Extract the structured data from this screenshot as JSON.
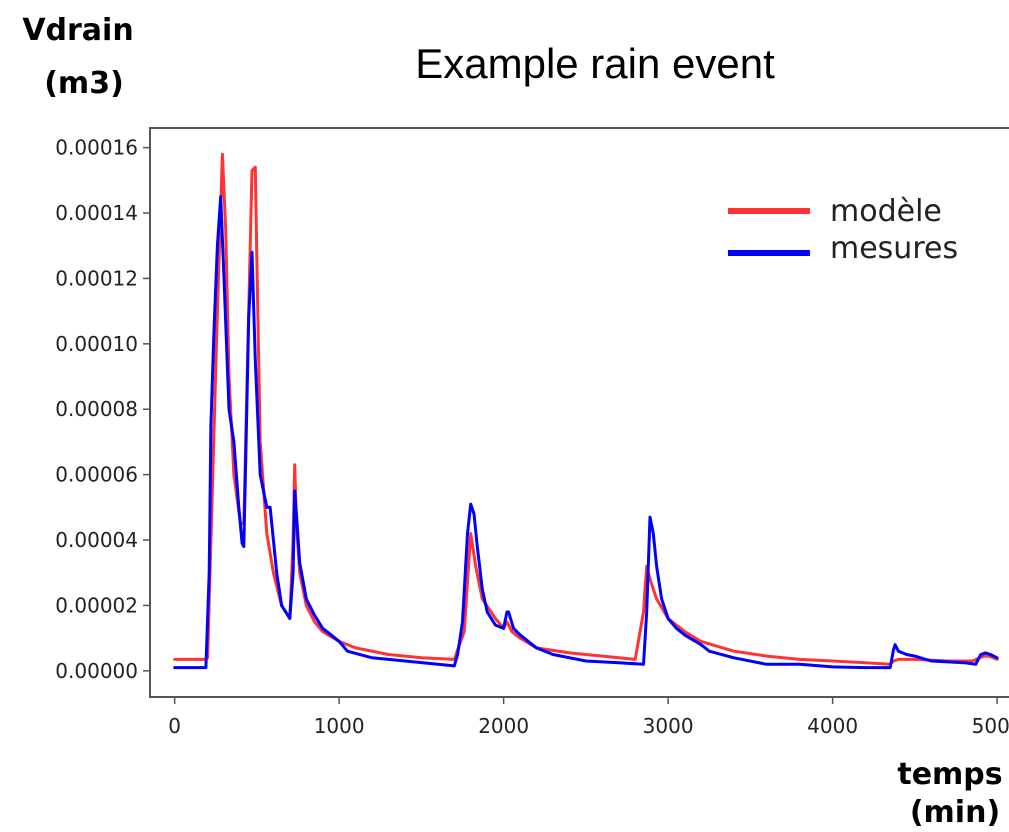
{
  "chart_data": {
    "type": "line",
    "title": "Example rain event",
    "ylabel_line1": "Vdrain",
    "ylabel_line2": "(m3)",
    "xlabel_line1": "temps",
    "xlabel_line2": "(min)",
    "xlim": [
      -150,
      5200
    ],
    "ylim": [
      -8e-06,
      0.000166
    ],
    "x_ticks": [
      0,
      1000,
      2000,
      3000,
      4000,
      5000
    ],
    "x_tick_labels": [
      "0",
      "1000",
      "2000",
      "3000",
      "4000",
      "5000"
    ],
    "y_ticks": [
      0,
      2e-05,
      4e-05,
      6e-05,
      8e-05,
      0.0001,
      0.00012,
      0.00014,
      0.00016
    ],
    "y_tick_labels": [
      "0.00000",
      "0.00002",
      "0.00004",
      "0.00006",
      "0.00008",
      "0.00010",
      "0.00012",
      "0.00014",
      "0.00016"
    ],
    "grid": false,
    "legend_position": "top-right",
    "series": [
      {
        "name": "modèle",
        "color": "#ff3333",
        "x": [
          0,
          190,
          200,
          260,
          290,
          310,
          330,
          360,
          400,
          420,
          450,
          470,
          490,
          500,
          520,
          560,
          600,
          650,
          700,
          720,
          730,
          740,
          760,
          800,
          850,
          900,
          1000,
          1100,
          1300,
          1500,
          1700,
          1760,
          1800,
          1830,
          1870,
          1950,
          2000,
          2020,
          2050,
          2100,
          2200,
          2400,
          2600,
          2800,
          2850,
          2870,
          2890,
          2930,
          3000,
          3100,
          3200,
          3400,
          3600,
          3800,
          4000,
          4200,
          4350,
          4370,
          4400,
          4500,
          4700,
          4850,
          4920,
          4950,
          5000
        ],
        "y": [
          3.5e-06,
          3.5e-06,
          4e-06,
          0.00011,
          0.000158,
          0.000135,
          9e-05,
          6e-05,
          4.5e-05,
          4.5e-05,
          0.00011,
          0.000153,
          0.000154,
          0.000125,
          7e-05,
          4.2e-05,
          3e-05,
          2e-05,
          1.6e-05,
          4e-05,
          6.3e-05,
          4.5e-05,
          3e-05,
          2e-05,
          1.5e-05,
          1.2e-05,
          9e-06,
          7e-06,
          5e-06,
          4e-06,
          3.5e-06,
          1.2e-05,
          4.2e-05,
          3.2e-05,
          2.2e-05,
          1.6e-05,
          1.3e-05,
          1.5e-05,
          1.2e-05,
          1e-05,
          7e-06,
          5.5e-06,
          4.5e-06,
          3.5e-06,
          1.8e-05,
          3.2e-05,
          2.8e-05,
          2.2e-05,
          1.6e-05,
          1.2e-05,
          9e-06,
          6e-06,
          4.5e-06,
          3.5e-06,
          3e-06,
          2.5e-06,
          2e-06,
          3e-06,
          3.5e-06,
          3.5e-06,
          3e-06,
          3e-06,
          4.5e-06,
          4.5e-06,
          3.5e-06
        ]
      },
      {
        "name": "mesures",
        "color": "#0000ff",
        "x": [
          0,
          190,
          210,
          220,
          240,
          260,
          280,
          300,
          330,
          360,
          390,
          410,
          420,
          430,
          450,
          470,
          490,
          520,
          560,
          580,
          600,
          620,
          650,
          700,
          720,
          730,
          740,
          760,
          800,
          850,
          900,
          1000,
          1050,
          1200,
          1400,
          1600,
          1700,
          1720,
          1750,
          1780,
          1800,
          1820,
          1840,
          1870,
          1900,
          1950,
          2000,
          2020,
          2030,
          2060,
          2100,
          2200,
          2300,
          2500,
          2700,
          2850,
          2870,
          2890,
          2910,
          2930,
          2960,
          3000,
          3050,
          3100,
          3200,
          3250,
          3400,
          3600,
          3800,
          4000,
          4200,
          4300,
          4350,
          4370,
          4380,
          4400,
          4450,
          4500,
          4600,
          4800,
          4870,
          4900,
          4930,
          4960,
          5000
        ],
        "y": [
          1e-06,
          1e-06,
          3e-05,
          7.5e-05,
          0.000105,
          0.00013,
          0.000145,
          0.00012,
          8e-05,
          7e-05,
          5e-05,
          3.9e-05,
          3.8e-05,
          6e-05,
          0.000108,
          0.000128,
          9.5e-05,
          6e-05,
          5e-05,
          5e-05,
          4e-05,
          3e-05,
          2e-05,
          1.6e-05,
          3e-05,
          5.5e-05,
          4.8e-05,
          3.3e-05,
          2.2e-05,
          1.7e-05,
          1.3e-05,
          9e-06,
          6e-06,
          4e-06,
          3e-06,
          2e-06,
          1.5e-06,
          5e-06,
          1.5e-05,
          4.2e-05,
          5.1e-05,
          4.8e-05,
          3.8e-05,
          2.5e-05,
          1.8e-05,
          1.4e-05,
          1.3e-05,
          1.8e-05,
          1.8e-05,
          1.3e-05,
          1.1e-05,
          7e-06,
          5e-06,
          3e-06,
          2.5e-06,
          2e-06,
          1.8e-05,
          4.7e-05,
          4.2e-05,
          3.2e-05,
          2.2e-05,
          1.6e-05,
          1.3e-05,
          1.1e-05,
          8e-06,
          6e-06,
          4e-06,
          2e-06,
          2e-06,
          1.2e-06,
          1e-06,
          1e-06,
          1e-06,
          6.5e-06,
          8e-06,
          6e-06,
          5e-06,
          4.5e-06,
          3e-06,
          2.5e-06,
          2e-06,
          5e-06,
          5.5e-06,
          5e-06,
          4e-06
        ]
      }
    ]
  }
}
